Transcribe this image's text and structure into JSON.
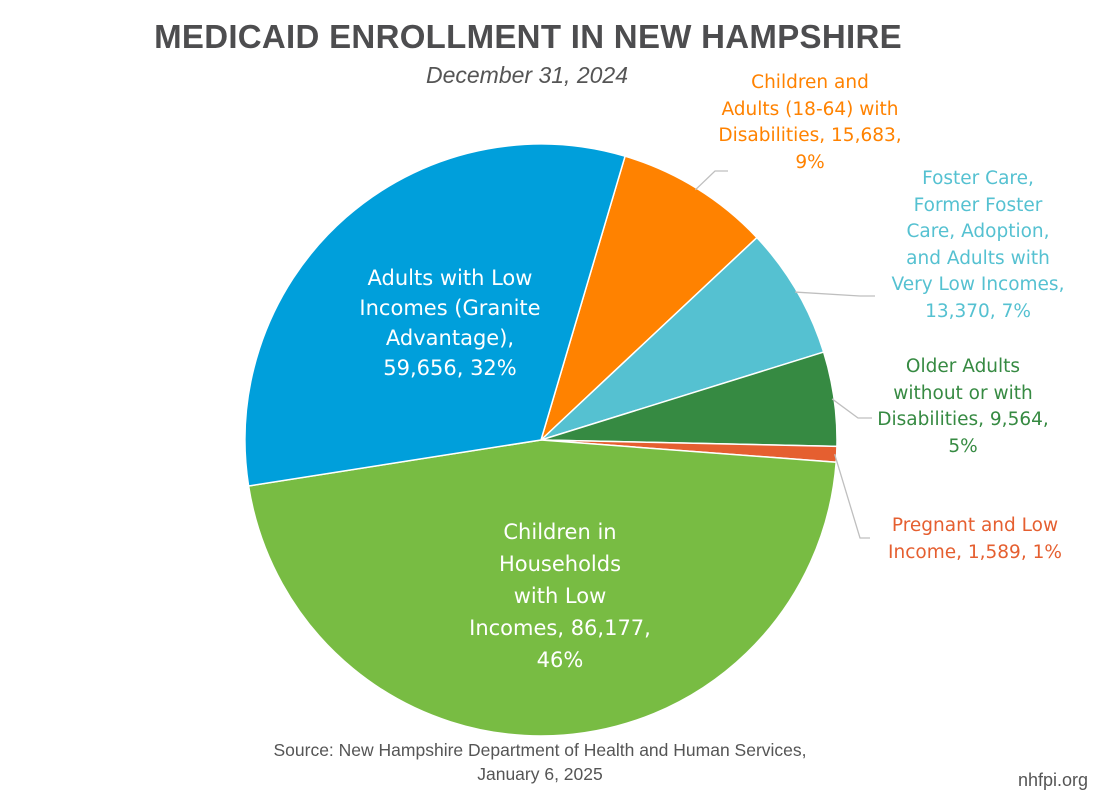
{
  "chart_data": {
    "type": "pie",
    "title": "MEDICAID ENROLLMENT IN NEW HAMPSHIRE",
    "subtitle": "December 31, 2024",
    "direction": "clockwise",
    "slices": [
      {
        "name": "Children and Adults (18-64) with Disabilities",
        "value": 15683,
        "percent": 9,
        "color": "#FF8200",
        "label_lines": [
          "Children and",
          "Adults (18-64) with",
          "Disabilities, 15,683,",
          "9%"
        ],
        "label_position": "outside"
      },
      {
        "name": "Foster Care, Former Foster Care, Adoption, and Adults with Very Low Incomes",
        "value": 13370,
        "percent": 7,
        "color": "#55C1D1",
        "label_lines": [
          "Foster Care,",
          "Former Foster",
          "Care, Adoption,",
          "and Adults with",
          "Very Low Incomes,",
          "13,370, 7%"
        ],
        "label_position": "outside"
      },
      {
        "name": "Older Adults without or with Disabilities",
        "value": 9564,
        "percent": 5,
        "color": "#368A42",
        "label_lines": [
          "Older Adults",
          "without or with",
          "Disabilities, 9,564,",
          "5%"
        ],
        "label_position": "outside"
      },
      {
        "name": "Pregnant and Low Income",
        "value": 1589,
        "percent": 1,
        "color": "#E55F30",
        "label_lines": [
          "Pregnant and Low",
          "Income, 1,589, 1%"
        ],
        "label_position": "outside"
      },
      {
        "name": "Children in Households with Low Incomes",
        "value": 86177,
        "percent": 46,
        "color": "#78BC43",
        "label_lines": [
          "Children in",
          "Households",
          "with Low",
          "Incomes, 86,177,",
          "46%"
        ],
        "label_position": "inside"
      },
      {
        "name": "Adults with Low Incomes (Granite Advantage)",
        "value": 59656,
        "percent": 32,
        "color": "#009FDB",
        "label_lines": [
          "Adults with Low",
          "Incomes (Granite",
          "Advantage),",
          "59,656, 32%"
        ],
        "label_position": "inside"
      }
    ]
  },
  "footer": {
    "source_line1": "Source: New Hampshire Department of Health and Human Services,",
    "source_line2": "January 6, 2025",
    "brand": "nhfpi.org"
  }
}
